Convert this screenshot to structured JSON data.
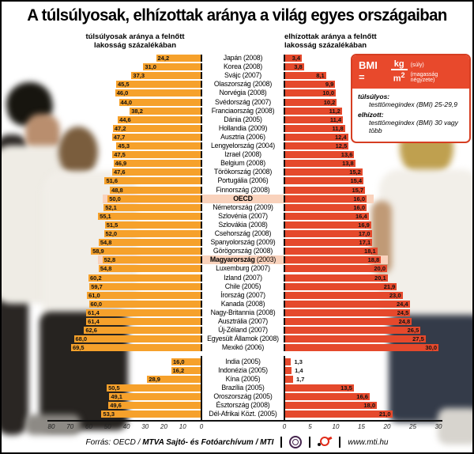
{
  "chart_data": {
    "type": "bar",
    "title": "A túlsúlyosak, elhízottak aránya a világ egyes országaiban",
    "left_header": "túlsúlyosak aránya a felnőtt lakosság százalékában",
    "right_header": "elhízottak aránya a felnőtt lakosság százalékában",
    "series": [
      {
        "name": "túlsúlyosak aránya (%)",
        "color": "#F6A12B",
        "direction": "left"
      },
      {
        "name": "elhízottak aránya (%)",
        "color": "#E5492C",
        "direction": "right"
      }
    ],
    "left_axis_ticks": [
      80,
      70,
      60,
      50,
      40,
      30,
      20,
      10,
      0
    ],
    "right_axis_ticks": [
      0,
      5,
      10,
      15,
      20,
      25,
      30
    ],
    "colors": {
      "overweight": "#F6A12B",
      "obese": "#E5492C",
      "highlight": "#F9D2BC"
    },
    "sections": [
      {
        "rows": [
          {
            "country": "Japán",
            "year": "2008",
            "overweight": 24.2,
            "obese": 3.4
          },
          {
            "country": "Korea",
            "year": "2008",
            "overweight": 31.0,
            "obese": 3.8
          },
          {
            "country": "Svájc",
            "year": "2007",
            "overweight": 37.3,
            "obese": 8.1
          },
          {
            "country": "Olaszország",
            "year": "2008",
            "overweight": 45.5,
            "obese": 9.9
          },
          {
            "country": "Norvégia",
            "year": "2008",
            "overweight": 46.0,
            "obese": 10.0
          },
          {
            "country": "Svédország",
            "year": "2007",
            "overweight": 44.0,
            "obese": 10.2
          },
          {
            "country": "Franciaország",
            "year": "2008",
            "overweight": 38.2,
            "obese": 11.2
          },
          {
            "country": "Dánia",
            "year": "2005",
            "overweight": 44.6,
            "obese": 11.4
          },
          {
            "country": "Hollandia",
            "year": "2009",
            "overweight": 47.2,
            "obese": 11.8
          },
          {
            "country": "Ausztria",
            "year": "2006",
            "overweight": 47.7,
            "obese": 12.4
          },
          {
            "country": "Lengyelország",
            "year": "2004",
            "overweight": 45.3,
            "obese": 12.5
          },
          {
            "country": "Izrael",
            "year": "2008",
            "overweight": 47.5,
            "obese": 13.6
          },
          {
            "country": "Belgium",
            "year": "2008",
            "overweight": 46.9,
            "obese": 13.8
          },
          {
            "country": "Törökország",
            "year": "2008",
            "overweight": 47.6,
            "obese": 15.2
          },
          {
            "country": "Portugália",
            "year": "2006",
            "overweight": 51.6,
            "obese": 15.4
          },
          {
            "country": "Finnország",
            "year": "2008",
            "overweight": 48.8,
            "obese": 15.7
          },
          {
            "country": "OECD",
            "year": null,
            "overweight": 50.0,
            "obese": 16.0,
            "highlight": true,
            "bold": true
          },
          {
            "country": "Németország",
            "year": "2009",
            "overweight": 52.1,
            "obese": 16.0
          },
          {
            "country": "Szlovénia",
            "year": "2007",
            "overweight": 55.1,
            "obese": 16.4
          },
          {
            "country": "Szlovákia",
            "year": "2008",
            "overweight": 51.5,
            "obese": 16.9
          },
          {
            "country": "Csehország",
            "year": "2008",
            "overweight": 52.0,
            "obese": 17.0
          },
          {
            "country": "Spanyolország",
            "year": "2009",
            "overweight": 54.8,
            "obese": 17.1
          },
          {
            "country": "Görögország",
            "year": "2008",
            "overweight": 58.9,
            "obese": 18.1
          },
          {
            "country": "Magyarország",
            "year": "2003",
            "overweight": 52.8,
            "obese": 18.8,
            "highlight": true,
            "bold": true
          },
          {
            "country": "Luxemburg",
            "year": "2007",
            "overweight": 54.8,
            "obese": 20.0
          },
          {
            "country": "Izland",
            "year": "2007",
            "overweight": 60.2,
            "obese": 20.1
          },
          {
            "country": "Chile",
            "year": "2005",
            "overweight": 59.7,
            "obese": 21.9
          },
          {
            "country": "Írország",
            "year": "2007",
            "overweight": 61.0,
            "obese": 23.0
          },
          {
            "country": "Kanada",
            "year": "2008",
            "overweight": 60.0,
            "obese": 24.4
          },
          {
            "country": "Nagy-Britannia",
            "year": "2008",
            "overweight": 61.4,
            "obese": 24.5
          },
          {
            "country": "Ausztrália",
            "year": "2007",
            "overweight": 61.4,
            "obese": 24.8
          },
          {
            "country": "Új-Zéland",
            "year": "2007",
            "overweight": 62.6,
            "obese": 26.5
          },
          {
            "country": "Egyesült Államok",
            "year": "2008",
            "overweight": 68.0,
            "obese": 27.5
          },
          {
            "country": "Mexikó",
            "year": "2006",
            "overweight": 69.5,
            "obese": 30.0
          }
        ]
      },
      {
        "rows": [
          {
            "country": "India",
            "year": "2005",
            "overweight": 16.0,
            "obese": 1.3
          },
          {
            "country": "Indonézia",
            "year": "2005",
            "overweight": 16.2,
            "obese": 1.4
          },
          {
            "country": "Kína",
            "year": "2005",
            "overweight": 28.9,
            "obese": 1.7
          },
          {
            "country": "Brazília",
            "year": "2005",
            "overweight": 50.5,
            "obese": 13.5
          },
          {
            "country": "Oroszország",
            "year": "2005",
            "overweight": 49.1,
            "obese": 16.6
          },
          {
            "country": "Észtország",
            "year": "2008",
            "overweight": 49.6,
            "obese": 18.0
          },
          {
            "country": "Dél-Afrikai Közt.",
            "year": "2005",
            "overweight": 53.3,
            "obese": 21.0
          }
        ]
      }
    ]
  },
  "legend": {
    "formula_prefix": "BMI =",
    "numerator": "kg",
    "numerator_note": "(súly)",
    "denominator": "m",
    "denominator_sup": "2",
    "denominator_note": "(magasság négyzete)",
    "definitions": [
      {
        "term": "túlsúlyos:",
        "text": "testtömegindex (BMI) 25-29,9"
      },
      {
        "term": "elhízott:",
        "text": "testtömegindex (BMI) 30 vagy több"
      }
    ],
    "background": "#E8492C"
  },
  "footer": {
    "source_italic": "Forrás: OECD /",
    "source_bold": "MTVA Sajtó- és Fotóarchívum / MTI",
    "url": "www.mti.hu",
    "logos": [
      "mtva-logo",
      "mti-logo"
    ]
  }
}
